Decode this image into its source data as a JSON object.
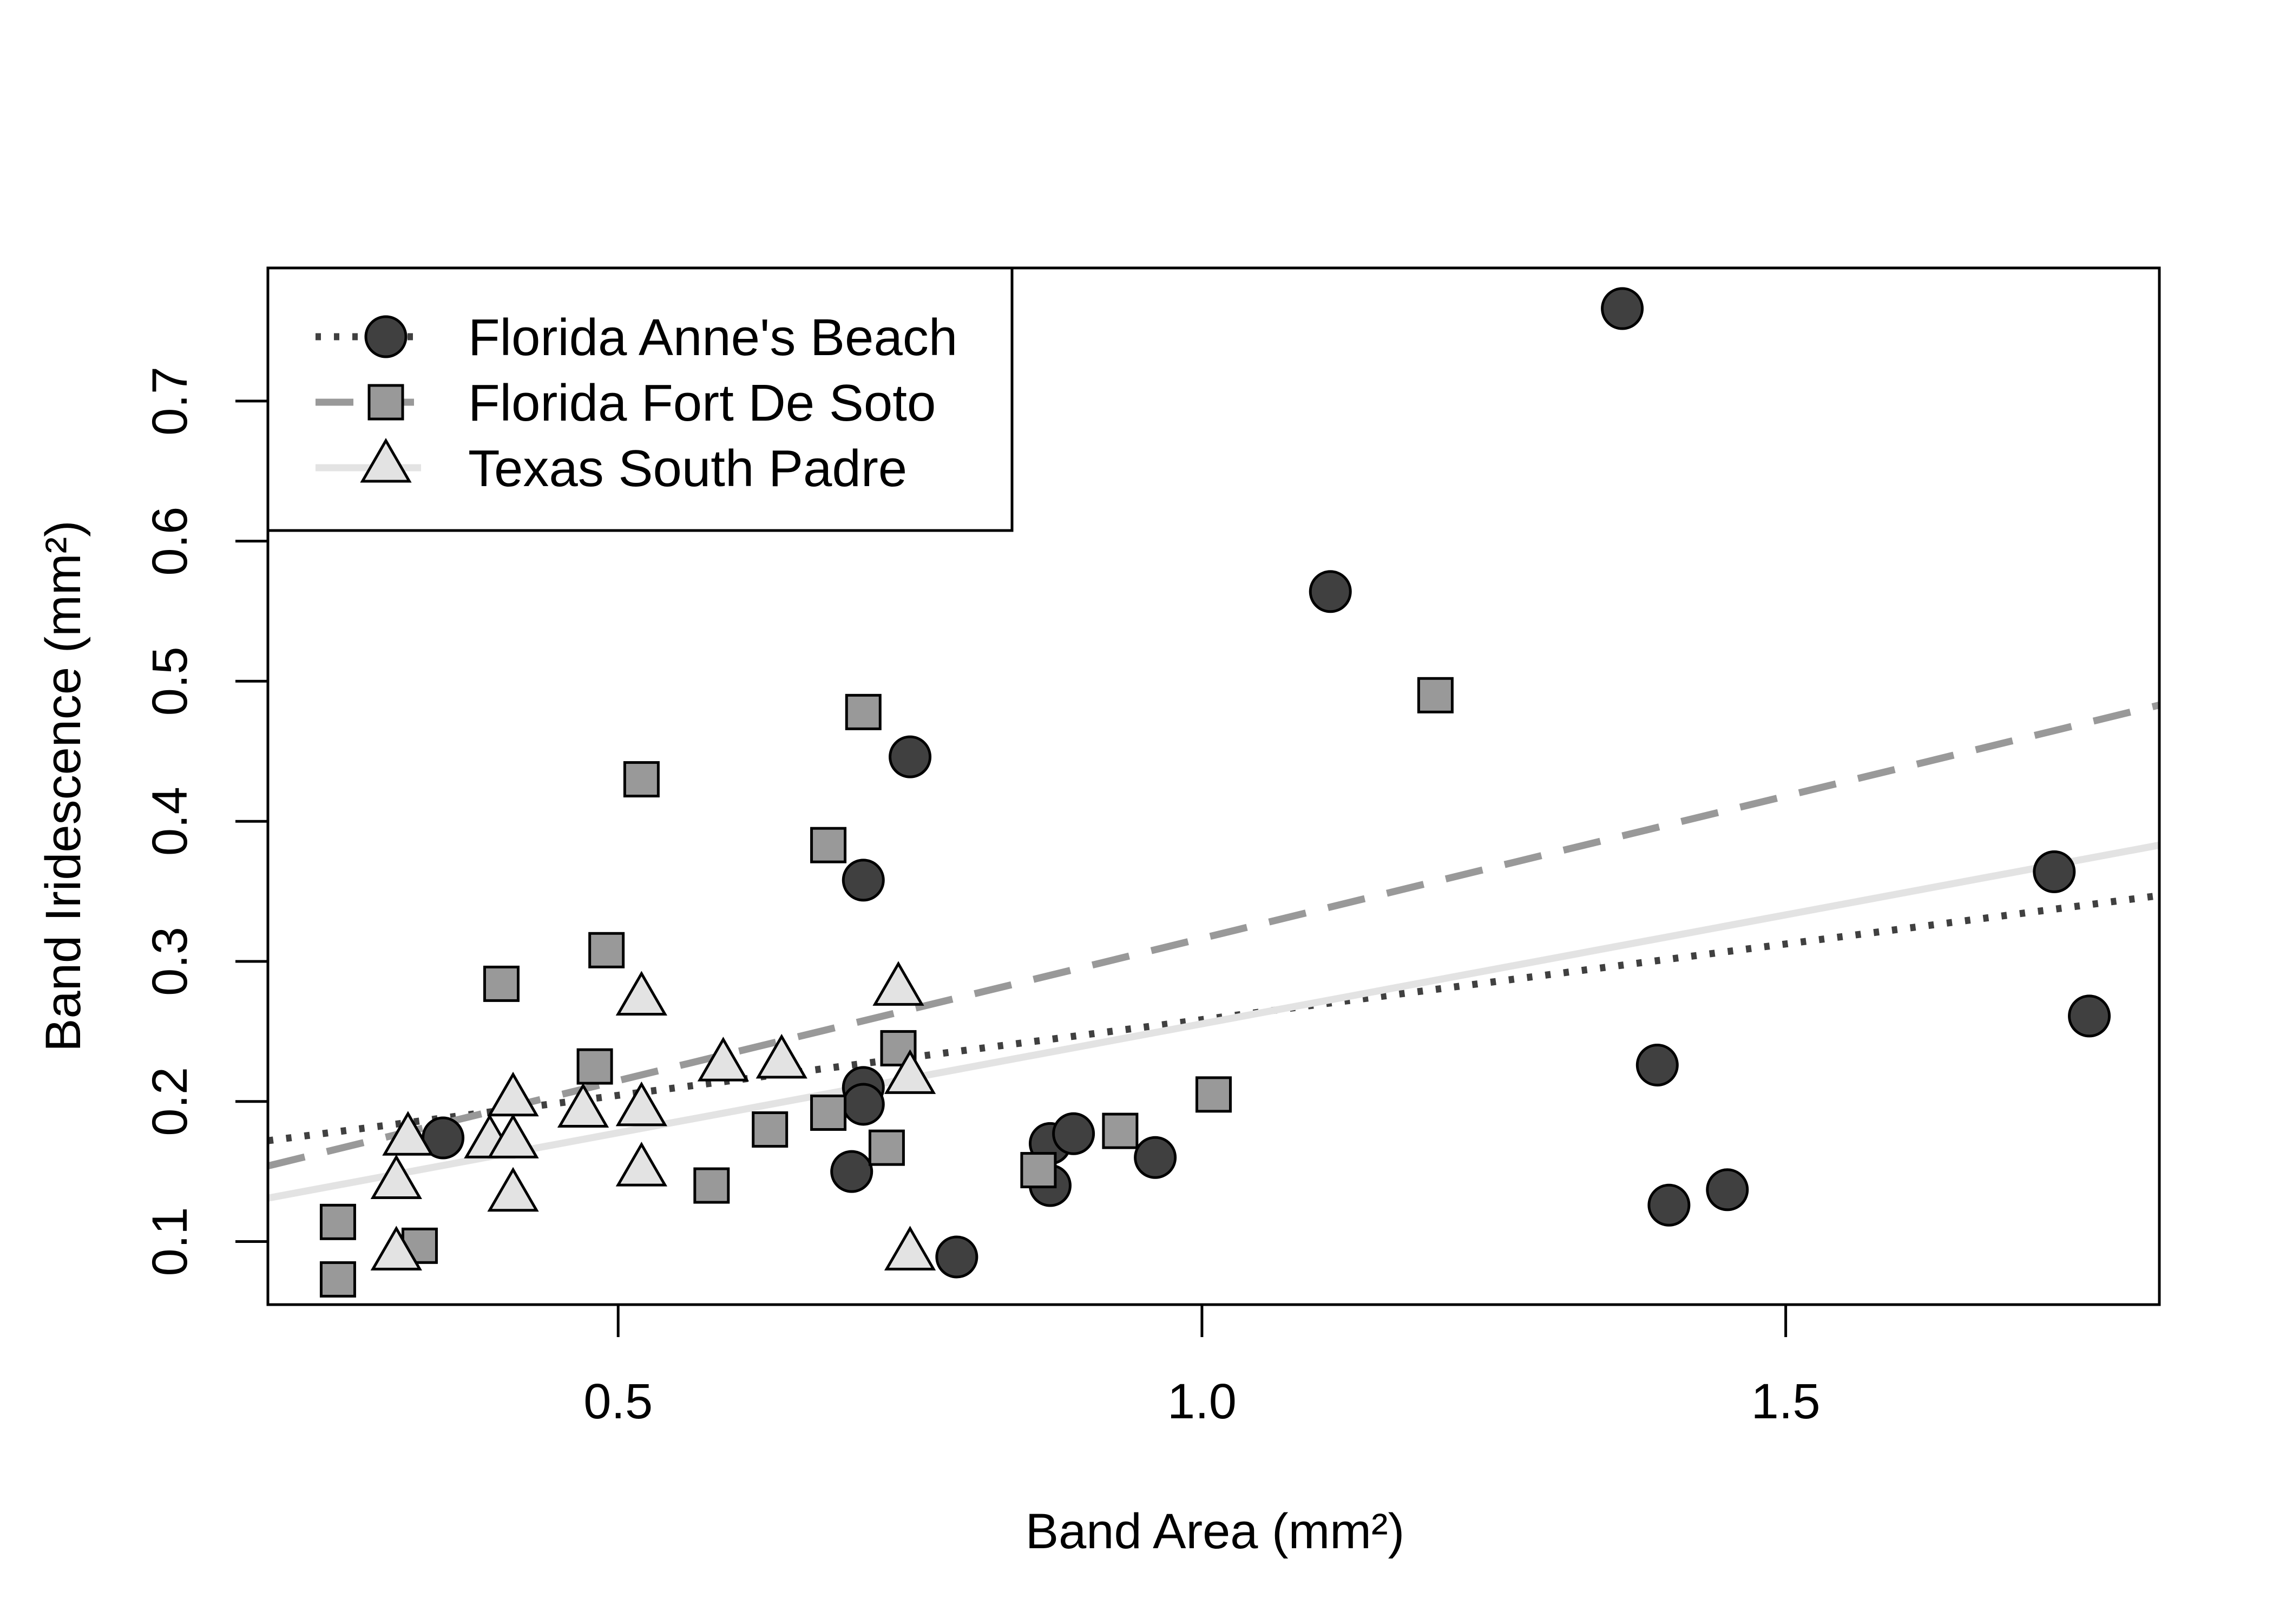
{
  "chart_data": {
    "type": "scatter",
    "xlabel": "Band Area (mm²)",
    "ylabel": "Band Iridescence (mm²)",
    "xlim": [
      0.2,
      1.82
    ],
    "ylim": [
      0.055,
      0.795
    ],
    "x_ticks": [
      0.5,
      1.0,
      1.5
    ],
    "x_tick_labels": [
      "0.5",
      "1.0",
      "1.5"
    ],
    "y_ticks": [
      0.1,
      0.2,
      0.3,
      0.4,
      0.5,
      0.6,
      0.7
    ],
    "y_tick_labels": [
      "0.1",
      "0.2",
      "0.3",
      "0.4",
      "0.5",
      "0.6",
      "0.7"
    ],
    "grid": false,
    "legend_position": "top-left",
    "series": [
      {
        "name": "Florida Anne's Beach",
        "marker": "circle",
        "fill": "#404040",
        "line_style": "dotted",
        "line_color": "#404040",
        "fit": [
          0.2,
          0.172,
          1.82,
          0.347
        ],
        "points": [
          [
            0.35,
            0.174
          ],
          [
            0.71,
            0.358
          ],
          [
            0.75,
            0.446
          ],
          [
            0.71,
            0.21
          ],
          [
            0.71,
            0.198
          ],
          [
            0.7,
            0.15
          ],
          [
            0.79,
            0.089
          ],
          [
            0.87,
            0.17
          ],
          [
            0.87,
            0.14
          ],
          [
            0.89,
            0.177
          ],
          [
            0.96,
            0.16
          ],
          [
            1.11,
            0.564
          ],
          [
            1.36,
            0.766
          ],
          [
            1.39,
            0.226
          ],
          [
            1.4,
            0.126
          ],
          [
            1.45,
            0.137
          ],
          [
            1.73,
            0.364
          ],
          [
            1.76,
            0.261
          ]
        ]
      },
      {
        "name": "Florida Fort De Soto",
        "marker": "square",
        "fill": "#999999",
        "line_style": "dashed",
        "line_color": "#999999",
        "fit": [
          0.2,
          0.154,
          1.82,
          0.483
        ],
        "points": [
          [
            0.26,
            0.114
          ],
          [
            0.26,
            0.073
          ],
          [
            0.33,
            0.097
          ],
          [
            0.4,
            0.284
          ],
          [
            0.48,
            0.225
          ],
          [
            0.49,
            0.308
          ],
          [
            0.52,
            0.43
          ],
          [
            0.58,
            0.14
          ],
          [
            0.63,
            0.18
          ],
          [
            0.68,
            0.192
          ],
          [
            0.68,
            0.383
          ],
          [
            0.71,
            0.478
          ],
          [
            0.73,
            0.167
          ],
          [
            0.74,
            0.238
          ],
          [
            0.86,
            0.151
          ],
          [
            0.93,
            0.179
          ],
          [
            1.01,
            0.205
          ],
          [
            1.2,
            0.49
          ]
        ]
      },
      {
        "name": "Texas South Padre",
        "marker": "triangle",
        "fill": "#e3e3e3",
        "line_style": "solid",
        "line_color": "#e3e3e3",
        "fit": [
          0.2,
          0.131,
          1.82,
          0.383
        ],
        "points": [
          [
            0.32,
            0.172
          ],
          [
            0.31,
            0.141
          ],
          [
            0.31,
            0.09
          ],
          [
            0.39,
            0.17
          ],
          [
            0.41,
            0.2
          ],
          [
            0.41,
            0.17
          ],
          [
            0.41,
            0.132
          ],
          [
            0.47,
            0.192
          ],
          [
            0.52,
            0.272
          ],
          [
            0.52,
            0.193
          ],
          [
            0.52,
            0.15
          ],
          [
            0.59,
            0.225
          ],
          [
            0.64,
            0.227
          ],
          [
            0.74,
            0.279
          ],
          [
            0.75,
            0.216
          ],
          [
            0.75,
            0.09
          ]
        ]
      }
    ]
  }
}
